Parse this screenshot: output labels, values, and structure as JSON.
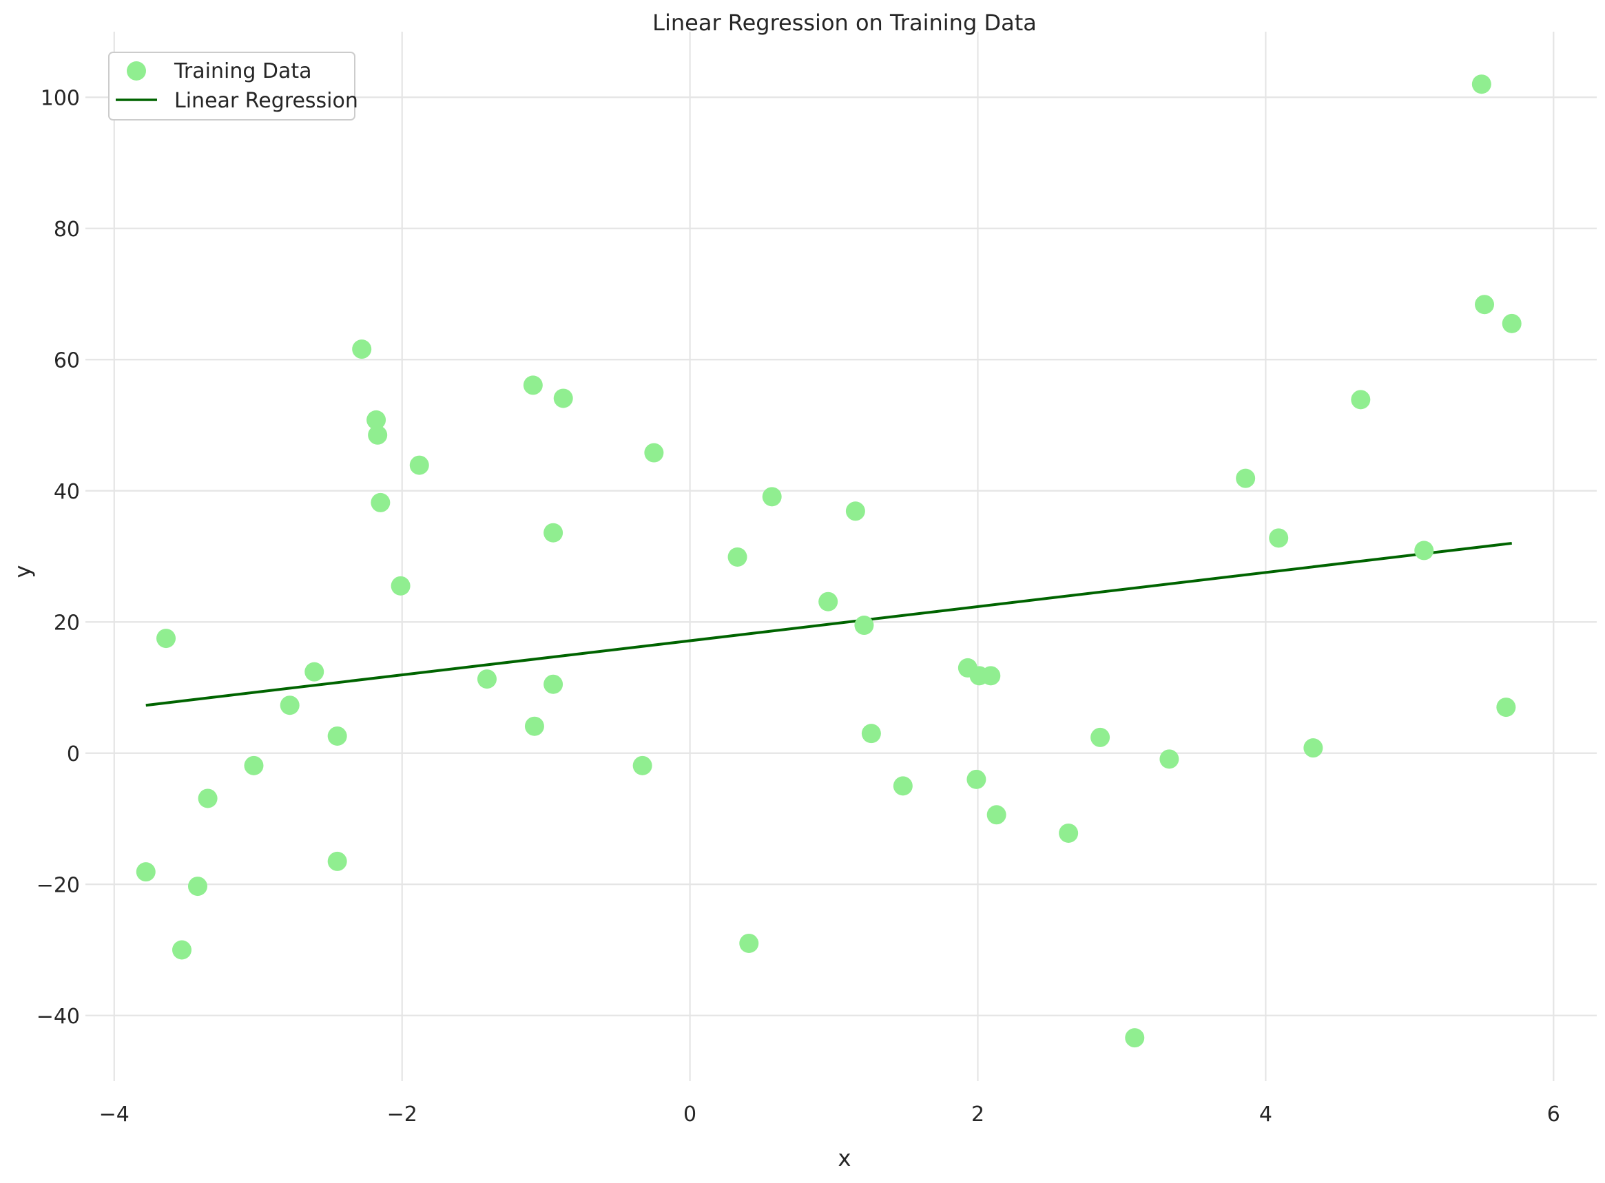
{
  "chart_data": {
    "type": "scatter",
    "title": "Linear Regression on Training Data",
    "xlabel": "x",
    "ylabel": "y",
    "xlim": [
      -4.2,
      6.3
    ],
    "ylim": [
      -50,
      110
    ],
    "xticks": [
      -4,
      -2,
      0,
      2,
      4,
      6
    ],
    "yticks": [
      -40,
      -20,
      0,
      20,
      40,
      60,
      80,
      100
    ],
    "xtick_labels": [
      "−4",
      "−2",
      "0",
      "2",
      "4",
      "6"
    ],
    "ytick_labels": [
      "−40",
      "−20",
      "0",
      "20",
      "40",
      "60",
      "80",
      "100"
    ],
    "grid": true,
    "legend": {
      "position": "top-left",
      "entries": [
        "Training Data",
        "Linear Regression"
      ]
    },
    "series": [
      {
        "name": "Training Data",
        "kind": "scatter",
        "color": "#90ee90",
        "points": [
          [
            -3.78,
            -18.1
          ],
          [
            -3.64,
            17.5
          ],
          [
            -3.53,
            -30.0
          ],
          [
            -3.42,
            -20.3
          ],
          [
            -3.35,
            -6.9
          ],
          [
            -3.03,
            -1.9
          ],
          [
            -2.78,
            7.3
          ],
          [
            -2.61,
            12.4
          ],
          [
            -2.45,
            2.6
          ],
          [
            -2.45,
            -16.5
          ],
          [
            -2.28,
            61.6
          ],
          [
            -2.18,
            50.8
          ],
          [
            -2.17,
            48.5
          ],
          [
            -2.15,
            38.2
          ],
          [
            -2.01,
            25.5
          ],
          [
            -1.88,
            43.9
          ],
          [
            -1.41,
            11.3
          ],
          [
            -1.09,
            56.1
          ],
          [
            -1.08,
            4.1
          ],
          [
            -0.95,
            33.6
          ],
          [
            -0.95,
            10.5
          ],
          [
            -0.88,
            54.1
          ],
          [
            -0.33,
            -1.9
          ],
          [
            -0.25,
            45.8
          ],
          [
            0.33,
            29.9
          ],
          [
            0.41,
            -29.0
          ],
          [
            0.57,
            39.1
          ],
          [
            0.96,
            23.1
          ],
          [
            1.15,
            36.9
          ],
          [
            1.21,
            19.5
          ],
          [
            1.26,
            3.0
          ],
          [
            1.48,
            -5.0
          ],
          [
            1.93,
            13.0
          ],
          [
            1.99,
            -4.0
          ],
          [
            2.01,
            11.8
          ],
          [
            2.09,
            11.8
          ],
          [
            2.13,
            -9.4
          ],
          [
            2.63,
            -12.2
          ],
          [
            2.85,
            2.4
          ],
          [
            3.09,
            -43.4
          ],
          [
            3.33,
            -0.9
          ],
          [
            3.86,
            41.9
          ],
          [
            4.09,
            32.8
          ],
          [
            4.33,
            0.8
          ],
          [
            4.66,
            53.9
          ],
          [
            5.1,
            30.9
          ],
          [
            5.5,
            102.0
          ],
          [
            5.52,
            68.4
          ],
          [
            5.67,
            7.0
          ],
          [
            5.71,
            65.5
          ]
        ]
      },
      {
        "name": "Linear Regression",
        "kind": "line",
        "color": "#006400",
        "x": [
          -3.78,
          5.71
        ],
        "y": [
          7.3,
          32.0
        ]
      }
    ]
  }
}
